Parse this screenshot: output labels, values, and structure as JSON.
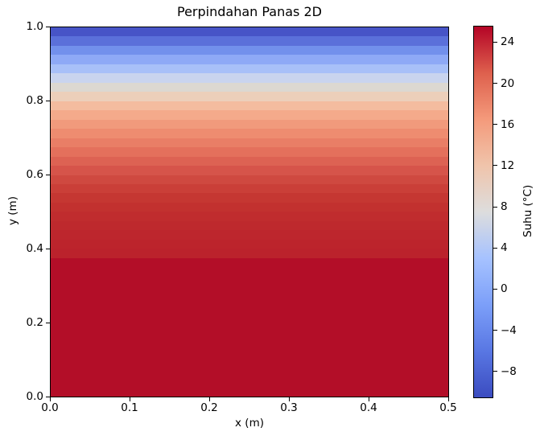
{
  "title": "Perpindahan Panas 2D",
  "x_axis": {
    "label": "x (m)",
    "ticks": [
      {
        "label": "0.0",
        "value": 0.0
      },
      {
        "label": "0.1",
        "value": 0.1
      },
      {
        "label": "0.2",
        "value": 0.2
      },
      {
        "label": "0.3",
        "value": 0.3
      },
      {
        "label": "0.4",
        "value": 0.4
      },
      {
        "label": "0.5",
        "value": 0.5
      }
    ]
  },
  "y_axis": {
    "label": "y (m)",
    "ticks": [
      {
        "label": "1.0",
        "value": 1.0
      },
      {
        "label": "0.8",
        "value": 0.8
      },
      {
        "label": "0.6",
        "value": 0.6
      },
      {
        "label": "0.4",
        "value": 0.4
      },
      {
        "label": "0.2",
        "value": 0.2
      },
      {
        "label": "0.0",
        "value": 0.0
      }
    ]
  },
  "colorbar": {
    "label": "Suhu (°C)",
    "colormap": "coolwarm",
    "vmin": -10.6,
    "vmax": 25.6,
    "ticks": [
      {
        "label": "24",
        "value": 24
      },
      {
        "label": "20",
        "value": 20
      },
      {
        "label": "16",
        "value": 16
      },
      {
        "label": "12",
        "value": 12
      },
      {
        "label": "8",
        "value": 8
      },
      {
        "label": "4",
        "value": 4
      },
      {
        "label": "0",
        "value": 0
      },
      {
        "label": "−4",
        "value": -4
      },
      {
        "label": "−8",
        "value": -8
      }
    ],
    "gradient_stops": [
      "#3b4cc0",
      "#5977e3",
      "#7c9ff9",
      "#a6c2ff",
      "#dddddd",
      "#f0c4ab",
      "#f49a7b",
      "#de604d",
      "#b40426"
    ]
  },
  "chart_data": {
    "type": "heatmap",
    "title": "Perpindahan Panas 2D",
    "xlabel": "x (m)",
    "ylabel": "y (m)",
    "value_label": "Suhu (°C)",
    "x_range": [
      0.0,
      0.5
    ],
    "y_range": [
      0.0,
      1.0
    ],
    "colormap": "coolwarm",
    "color_range_c": [
      -10.6,
      25.6
    ],
    "uniform_along_x": true,
    "bands": [
      {
        "y0": 0.975,
        "y1": 1.0,
        "temp_c": -9.0,
        "color": "#4754c7"
      },
      {
        "y0": 0.95,
        "y1": 0.975,
        "temp_c": -6.4,
        "color": "#5b70da"
      },
      {
        "y0": 0.925,
        "y1": 0.95,
        "temp_c": -3.9,
        "color": "#7290ec"
      },
      {
        "y0": 0.9,
        "y1": 0.925,
        "temp_c": -1.2,
        "color": "#8ea9f6"
      },
      {
        "y0": 0.875,
        "y1": 0.9,
        "temp_c": 1.5,
        "color": "#a8c0f8"
      },
      {
        "y0": 0.85,
        "y1": 0.875,
        "temp_c": 4.2,
        "color": "#c9d4ee"
      },
      {
        "y0": 0.825,
        "y1": 0.85,
        "temp_c": 7.0,
        "color": "#dcd8d1"
      },
      {
        "y0": 0.8,
        "y1": 0.825,
        "temp_c": 9.5,
        "color": "#eccfba"
      },
      {
        "y0": 0.775,
        "y1": 0.8,
        "temp_c": 12.0,
        "color": "#f4bc9f"
      },
      {
        "y0": 0.75,
        "y1": 0.775,
        "temp_c": 14.2,
        "color": "#f4aa8b"
      },
      {
        "y0": 0.725,
        "y1": 0.75,
        "temp_c": 16.0,
        "color": "#f19a7c"
      },
      {
        "y0": 0.7,
        "y1": 0.725,
        "temp_c": 17.6,
        "color": "#ee8c70"
      },
      {
        "y0": 0.675,
        "y1": 0.7,
        "temp_c": 19.1,
        "color": "#e97e66"
      },
      {
        "y0": 0.65,
        "y1": 0.675,
        "temp_c": 20.4,
        "color": "#e4705c"
      },
      {
        "y0": 0.625,
        "y1": 0.65,
        "temp_c": 21.4,
        "color": "#dd6253"
      },
      {
        "y0": 0.6,
        "y1": 0.625,
        "temp_c": 22.3,
        "color": "#d6544a"
      },
      {
        "y0": 0.575,
        "y1": 0.6,
        "temp_c": 23.1,
        "color": "#cf4940"
      },
      {
        "y0": 0.55,
        "y1": 0.575,
        "temp_c": 23.6,
        "color": "#ca3f38"
      },
      {
        "y0": 0.525,
        "y1": 0.55,
        "temp_c": 24.0,
        "color": "#c53732"
      },
      {
        "y0": 0.5,
        "y1": 0.525,
        "temp_c": 24.3,
        "color": "#c2312f"
      },
      {
        "y0": 0.475,
        "y1": 0.5,
        "temp_c": 24.5,
        "color": "#c02c2e"
      },
      {
        "y0": 0.45,
        "y1": 0.475,
        "temp_c": 24.7,
        "color": "#be292d"
      },
      {
        "y0": 0.425,
        "y1": 0.45,
        "temp_c": 24.8,
        "color": "#bd262d"
      },
      {
        "y0": 0.4,
        "y1": 0.425,
        "temp_c": 24.9,
        "color": "#bc242c"
      },
      {
        "y0": 0.375,
        "y1": 0.4,
        "temp_c": 25.1,
        "color": "#bb222c"
      },
      {
        "y0": 0.0,
        "y1": 0.375,
        "temp_c": 25.6,
        "color": "#b30e28"
      }
    ]
  }
}
